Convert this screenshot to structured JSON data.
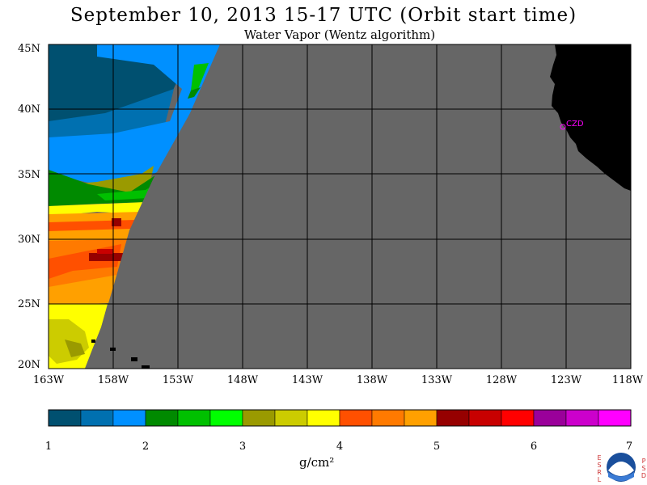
{
  "title": "September 10, 2013  15-17 UTC  (Orbit start time)",
  "subtitle": "Water Vapor (Wentz algorithm)",
  "map": {
    "lat_labels": [
      "45N",
      "40N",
      "35N",
      "30N",
      "25N",
      "20N"
    ],
    "lon_labels": [
      "163W",
      "158W",
      "153W",
      "148W",
      "143W",
      "138W",
      "133W",
      "128W",
      "123W",
      "118W"
    ],
    "lat_range": [
      20,
      45
    ],
    "lon_range": [
      -163,
      -118
    ],
    "station_label": "CZD",
    "colors": {
      "no_data": "#666666",
      "land": "#000000",
      "grid": "#000000",
      "station": "#ff00ff"
    }
  },
  "colorbar": {
    "ticks": [
      "1",
      "2",
      "3",
      "4",
      "5",
      "6",
      "7"
    ],
    "units": "g/cm²",
    "colors": [
      "#005070",
      "#0070b0",
      "#0090ff",
      "#008a00",
      "#00c000",
      "#00ff00",
      "#9a9a00",
      "#cccc00",
      "#ffff00",
      "#ff5000",
      "#ff7a00",
      "#ffa000",
      "#960000",
      "#c80000",
      "#ff0000",
      "#9a009a",
      "#cc00cc",
      "#ff00ff"
    ]
  },
  "logo": {
    "left_text": "ESRL",
    "right_text": "PSD",
    "center": "NOAA"
  }
}
